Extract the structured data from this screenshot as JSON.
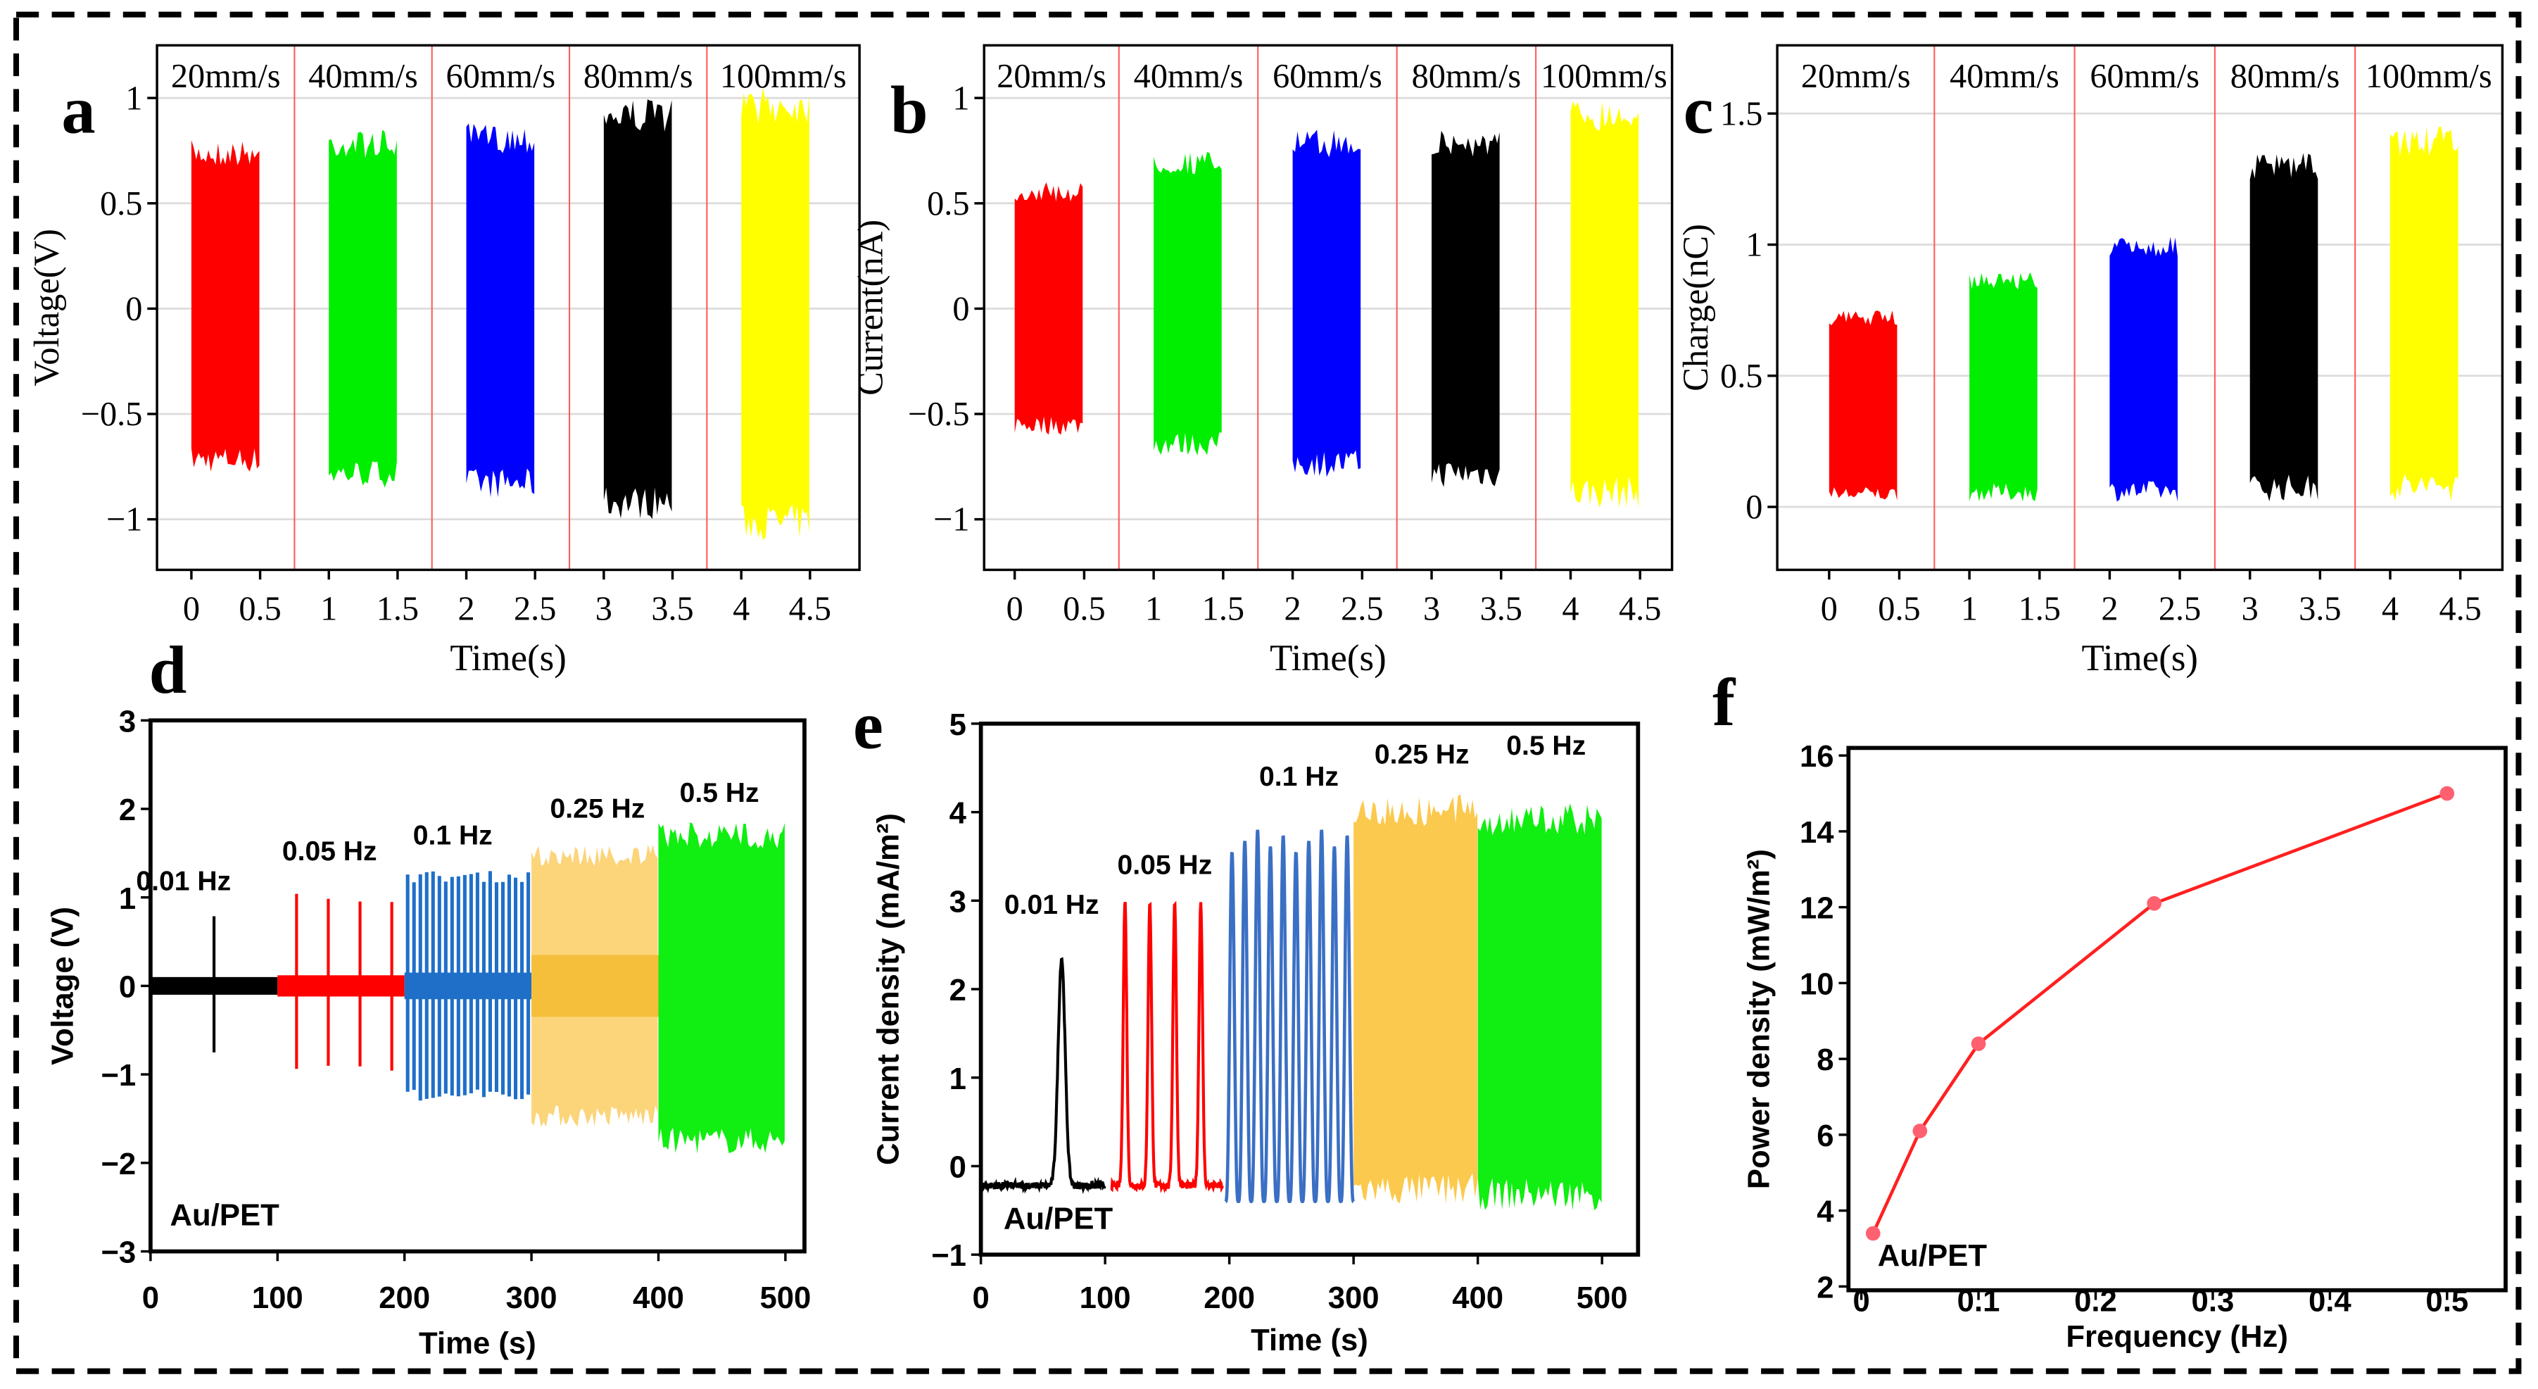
{
  "panels": [
    "a",
    "b",
    "c",
    "d",
    "e",
    "f"
  ],
  "chart_data": [
    {
      "panel": "a",
      "type": "line",
      "title": "",
      "ylabel": "Voltage(V)",
      "xlabel": "Time(s)",
      "xticks": [
        0,
        0.5,
        1,
        1.5,
        2,
        2.5,
        3,
        3.5,
        4,
        4.5
      ],
      "xtick_labels": [
        "0",
        "0.5",
        "1",
        "1.5",
        "2",
        "2.5",
        "3",
        "3.5",
        "4",
        "4.5"
      ],
      "yticks": [
        -1,
        -0.5,
        0,
        0.5,
        1
      ],
      "ytick_labels": [
        "−1",
        "−0.5",
        "0",
        "0.5",
        "1"
      ],
      "xlim": [
        -0.25,
        4.86
      ],
      "ylim": [
        -1.24,
        1.25
      ],
      "grid": true,
      "dividers": [
        0.75,
        1.75,
        2.75,
        3.75
      ],
      "series": [
        {
          "name": "20mm/s",
          "color": "#ff0000",
          "t": [
            0,
            0.5
          ],
          "max": 0.8,
          "min": -0.78
        },
        {
          "name": "40mm/s",
          "color": "#00ee00",
          "t": [
            1,
            1.5
          ],
          "max": 0.85,
          "min": -0.85
        },
        {
          "name": "60mm/s",
          "color": "#0000ff",
          "t": [
            2,
            2.5
          ],
          "max": 0.88,
          "min": -0.9
        },
        {
          "name": "80mm/s",
          "color": "#000000",
          "t": [
            3,
            3.5
          ],
          "max": 1.0,
          "min": -1.0
        },
        {
          "name": "100mm/s",
          "color": "#ffff00",
          "t": [
            4,
            4.5
          ],
          "max": 1.05,
          "min": -1.1
        }
      ]
    },
    {
      "panel": "b",
      "type": "line",
      "title": "",
      "ylabel": "Current(nA)",
      "xlabel": "Time(s)",
      "xticks": [
        0,
        0.5,
        1,
        1.5,
        2,
        2.5,
        3,
        3.5,
        4,
        4.5
      ],
      "xtick_labels": [
        "0",
        "0.5",
        "1",
        "1.5",
        "2",
        "2.5",
        "3",
        "3.5",
        "4",
        "4.5"
      ],
      "yticks": [
        -1,
        -0.5,
        0,
        0.5,
        1
      ],
      "ytick_labels": [
        "−1",
        "−0.5",
        "0",
        "0.5",
        "1"
      ],
      "xlim": [
        -0.22,
        4.73
      ],
      "ylim": [
        -1.24,
        1.25
      ],
      "grid": true,
      "dividers": [
        0.75,
        1.75,
        2.75,
        3.75
      ],
      "series": [
        {
          "name": "20mm/s",
          "color": "#ff0000",
          "t": [
            0,
            0.5
          ],
          "max": 0.6,
          "min": -0.6
        },
        {
          "name": "40mm/s",
          "color": "#00ee00",
          "t": [
            1,
            1.5
          ],
          "max": 0.75,
          "min": -0.7
        },
        {
          "name": "60mm/s",
          "color": "#0000ff",
          "t": [
            2,
            2.5
          ],
          "max": 0.85,
          "min": -0.8
        },
        {
          "name": "80mm/s",
          "color": "#000000",
          "t": [
            3,
            3.5
          ],
          "max": 0.85,
          "min": -0.85
        },
        {
          "name": "100mm/s",
          "color": "#ffff00",
          "t": [
            4,
            4.5
          ],
          "max": 1.0,
          "min": -0.95
        }
      ]
    },
    {
      "panel": "c",
      "type": "line",
      "title": "",
      "ylabel": "Charge(nC)",
      "xlabel": "Time(s)",
      "xticks": [
        0,
        0.5,
        1,
        1.5,
        2,
        2.5,
        3,
        3.5,
        4,
        4.5
      ],
      "xtick_labels": [
        "0",
        "0.5",
        "1",
        "1.5",
        "2",
        "2.5",
        "3",
        "3.5",
        "4",
        "4.5"
      ],
      "yticks": [
        0,
        0.5,
        1,
        1.5
      ],
      "ytick_labels": [
        "0",
        "0.5",
        "1",
        "1.5"
      ],
      "xlim": [
        -0.37,
        4.8
      ],
      "ylim": [
        -0.24,
        1.76
      ],
      "grid": true,
      "dividers": [
        0.75,
        1.75,
        2.75,
        3.75
      ],
      "series": [
        {
          "name": "20mm/s",
          "color": "#ff0000",
          "t": [
            0,
            0.5
          ],
          "max": 0.75,
          "min": 0.02
        },
        {
          "name": "40mm/s",
          "color": "#00ee00",
          "t": [
            1,
            1.5
          ],
          "max": 0.9,
          "min": 0.02
        },
        {
          "name": "60mm/s",
          "color": "#0000ff",
          "t": [
            2,
            2.5
          ],
          "max": 1.03,
          "min": 0.02
        },
        {
          "name": "80mm/s",
          "color": "#000000",
          "t": [
            3,
            3.5
          ],
          "max": 1.35,
          "min": 0.02
        },
        {
          "name": "100mm/s",
          "color": "#ffff00",
          "t": [
            4,
            4.5
          ],
          "max": 1.45,
          "min": 0.02
        }
      ]
    },
    {
      "panel": "d",
      "type": "line",
      "title": "",
      "ylabel": "Voltage (V)",
      "xlabel": "Time (s)",
      "annotation": "Au/PET",
      "xticks": [
        0,
        100,
        200,
        300,
        400,
        500
      ],
      "xtick_labels": [
        "0",
        "100",
        "200",
        "300",
        "400",
        "500"
      ],
      "yticks": [
        -3,
        -2,
        -1,
        0,
        1,
        2,
        3
      ],
      "ytick_labels": [
        "−3",
        "−2",
        "−1",
        "0",
        "1",
        "2",
        "3"
      ],
      "xlim": [
        0,
        515
      ],
      "ylim": [
        -3,
        3
      ],
      "grid": false,
      "series": [
        {
          "name": "0.01 Hz",
          "color": "#000000",
          "t": [
            0,
            100
          ],
          "kind": "spikes",
          "peaks": [
            50
          ],
          "max": 0.8,
          "min": -0.8,
          "base": [
            -0.1,
            0.1
          ]
        },
        {
          "name": "0.05 Hz",
          "color": "#ff0000",
          "t": [
            100,
            200
          ],
          "kind": "spikes",
          "peaks": [
            115,
            140,
            165,
            190
          ],
          "max": 1.05,
          "min": -1.0,
          "base": [
            -0.12,
            0.12
          ]
        },
        {
          "name": "0.1 Hz",
          "color": "#1f6fc8",
          "t": [
            200,
            300
          ],
          "kind": "periodic",
          "cycles": 20,
          "max": 1.3,
          "min": -1.3,
          "base": [
            -0.15,
            0.15
          ]
        },
        {
          "name": "0.25 Hz",
          "color": "#fcd47a",
          "t": [
            300,
            400
          ],
          "kind": "dense",
          "max": 1.6,
          "min": -1.6,
          "inner": [
            -0.35,
            0.35
          ],
          "inner_color": "#f5bf3c"
        },
        {
          "name": "0.5 Hz",
          "color": "#11ee11",
          "t": [
            400,
            500
          ],
          "kind": "dense",
          "max": 1.85,
          "min": -1.9
        }
      ]
    },
    {
      "panel": "e",
      "type": "line",
      "title": "",
      "ylabel": "Current density (mA/m²)",
      "xlabel": "Time (s)",
      "annotation": "Au/PET",
      "xticks": [
        0,
        100,
        200,
        300,
        400,
        500
      ],
      "xtick_labels": [
        "0",
        "100",
        "200",
        "300",
        "400",
        "500"
      ],
      "yticks": [
        -1,
        0,
        1,
        2,
        3,
        4,
        5
      ],
      "ytick_labels": [
        "−1",
        "0",
        "1",
        "2",
        "3",
        "4",
        "5"
      ],
      "xlim": [
        0,
        529
      ],
      "ylim": [
        -1,
        5
      ],
      "grid": false,
      "series": [
        {
          "name": "0.01 Hz",
          "color": "#000000",
          "t": [
            0,
            100
          ],
          "kind": "pulses",
          "peaks": [
            65
          ],
          "max": 2.35,
          "baseline": -0.22,
          "width": 4
        },
        {
          "name": "0.05 Hz",
          "color": "#ff0000",
          "t": [
            105,
            195
          ],
          "kind": "pulses",
          "peaks": [
            116,
            136,
            156,
            177
          ],
          "max": 3.0,
          "baseline": -0.22,
          "width": 2
        },
        {
          "name": "0.1 Hz",
          "color": "#3a6fc4",
          "t": [
            197,
            300
          ],
          "kind": "wave",
          "cycles": 10,
          "max": 3.8,
          "min": -0.4
        },
        {
          "name": "0.25 Hz",
          "color": "#fbc94d",
          "t": [
            300,
            400
          ],
          "kind": "dense",
          "max": 4.2,
          "min": -0.45
        },
        {
          "name": "0.5 Hz",
          "color": "#11ee11",
          "t": [
            400,
            500
          ],
          "kind": "dense",
          "max": 4.1,
          "min": -0.5
        }
      ]
    },
    {
      "panel": "f",
      "type": "line",
      "title": "",
      "ylabel": "Power density (mW/m²)",
      "xlabel": "Frequency (Hz)",
      "annotation": "Au/PET",
      "xticks": [
        0,
        0.1,
        0.2,
        0.3,
        0.4,
        0.5
      ],
      "xtick_labels": [
        "0",
        "0.1",
        "0.2",
        "0.3",
        "0.4",
        "0.5"
      ],
      "yticks": [
        2,
        4,
        6,
        8,
        10,
        12,
        14,
        16
      ],
      "ytick_labels": [
        "2",
        "4",
        "6",
        "8",
        "10",
        "12",
        "14",
        "16"
      ],
      "xlim": [
        -0.011,
        0.55
      ],
      "ylim": [
        1.9,
        16.2
      ],
      "grid": false,
      "series": [
        {
          "name": "Au/PET",
          "color": "#ff2020",
          "x": [
            0.01,
            0.05,
            0.1,
            0.25,
            0.5
          ],
          "y": [
            3.4,
            6.1,
            8.4,
            12.1,
            15.0
          ]
        }
      ]
    }
  ]
}
